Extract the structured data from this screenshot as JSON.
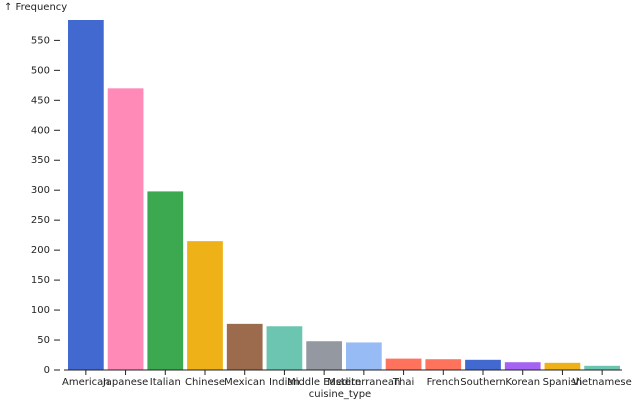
{
  "chart_data": {
    "type": "bar",
    "y_label": "↑ Frequency",
    "x_label": "cuisine_type",
    "categories": [
      "American",
      "Japanese",
      "Italian",
      "Chinese",
      "Mexican",
      "Indian",
      "Middle Eastern",
      "Mediterranean",
      "Thai",
      "French",
      "Southern",
      "Korean",
      "Spanish",
      "Vietnamese"
    ],
    "values": [
      584,
      470,
      298,
      215,
      77,
      73,
      48,
      46,
      19,
      18,
      17,
      13,
      12,
      7
    ],
    "colors": [
      "#4269d0",
      "#ff8ab7",
      "#3ca951",
      "#efb118",
      "#9c6b4e",
      "#6cc5b0",
      "#9498a0",
      "#97bbf5",
      "#ff725c",
      "#ff725c",
      "#4269d0",
      "#a463f2",
      "#efb118",
      "#6cc5b0"
    ],
    "ylim": [
      0,
      584
    ],
    "yticks": [
      0,
      50,
      100,
      150,
      200,
      250,
      300,
      350,
      400,
      450,
      500,
      550
    ],
    "grid": false
  }
}
